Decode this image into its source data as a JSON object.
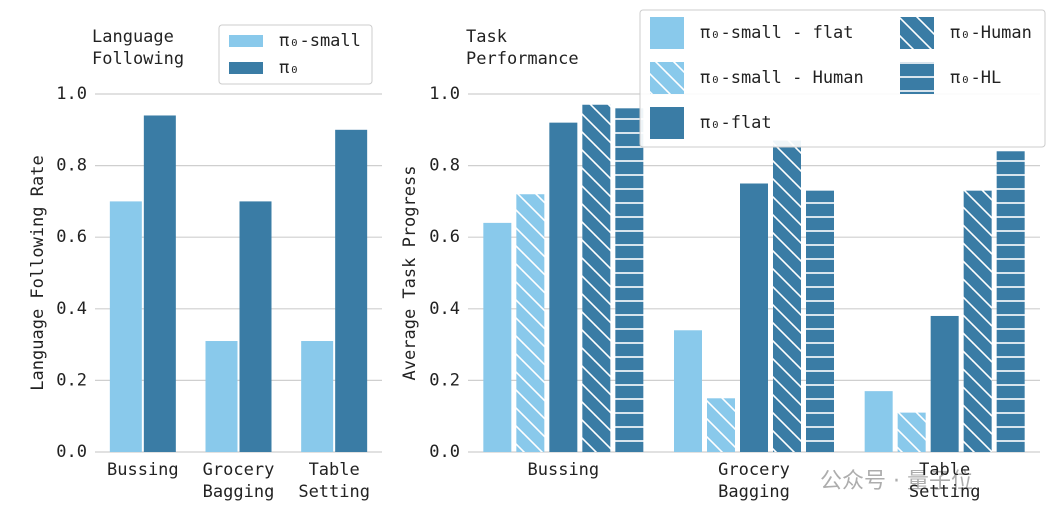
{
  "chart_data": [
    {
      "type": "bar",
      "title": "Language\nFollowing",
      "ylabel": "Language Following Rate",
      "categories": [
        "Bussing",
        "Grocery\nBagging",
        "Table\nSetting"
      ],
      "series": [
        {
          "name": "π₀-small",
          "color": "#89c9eb",
          "values": [
            0.7,
            0.31,
            0.31
          ]
        },
        {
          "name": "π₀",
          "color": "#3a7ca5",
          "values": [
            0.94,
            0.7,
            0.9
          ]
        }
      ],
      "ylim": [
        0,
        1
      ],
      "yticks": [
        {
          "value": 0,
          "label": "0.0"
        },
        0.2,
        0.4,
        0.6,
        0.8,
        {
          "value": 1,
          "label": "1.0"
        }
      ],
      "grid": true,
      "legend": "upper right"
    },
    {
      "type": "bar",
      "title": "Task\nPerformance",
      "ylabel": "Average Task Progress",
      "categories": [
        "Bussing",
        "Grocery\nBagging",
        "Table\nSetting"
      ],
      "series": [
        {
          "name": "π₀-small - flat",
          "color": "#89c9eb",
          "values": [
            0.64,
            0.34,
            0.17
          ]
        },
        {
          "name": "π₀-small - Human",
          "color": "#89c9eb",
          "hatch": "\\",
          "values": [
            0.72,
            0.15,
            0.11
          ]
        },
        {
          "name": "π₀-flat",
          "color": "#3a7ca5",
          "values": [
            0.92,
            0.75,
            0.38
          ]
        },
        {
          "name": "π₀-Human",
          "color": "#3a7ca5",
          "hatch": "\\",
          "values": [
            0.97,
            0.87,
            0.73
          ]
        },
        {
          "name": "π₀-HL",
          "color": "#3a7ca5",
          "hatch": "-",
          "values": [
            0.96,
            0.73,
            0.84
          ]
        }
      ],
      "ylim": [
        0,
        1
      ],
      "yticks": [
        {
          "value": 0,
          "label": "0.0"
        },
        0.2,
        0.4,
        0.6,
        0.8,
        {
          "value": 1,
          "label": "1.0"
        }
      ],
      "grid": true,
      "legend": "upper right"
    }
  ],
  "watermark": "公众号 · 量子位"
}
